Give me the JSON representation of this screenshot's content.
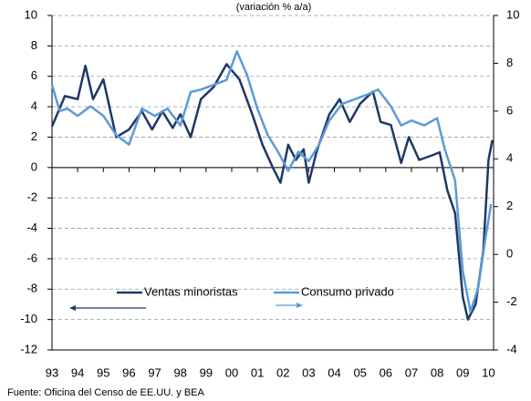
{
  "chart_data": {
    "type": "line",
    "subtitle": "(variación % a/a)",
    "source": "Fuente: Oficina del Censo de EE.UU. y BEA",
    "xlim": [
      1993,
      2010.2
    ],
    "xticks": [
      {
        "value": 1993,
        "label": "93"
      },
      {
        "value": 1994,
        "label": "94"
      },
      {
        "value": 1995,
        "label": "95"
      },
      {
        "value": 1996,
        "label": "96"
      },
      {
        "value": 1997,
        "label": "97"
      },
      {
        "value": 1998,
        "label": "98"
      },
      {
        "value": 1999,
        "label": "99"
      },
      {
        "value": 2000,
        "label": "00"
      },
      {
        "value": 2001,
        "label": "01"
      },
      {
        "value": 2002,
        "label": "02"
      },
      {
        "value": 2003,
        "label": "03"
      },
      {
        "value": 2004,
        "label": "04"
      },
      {
        "value": 2005,
        "label": "05"
      },
      {
        "value": 2006,
        "label": "06"
      },
      {
        "value": 2007,
        "label": "07"
      },
      {
        "value": 2008,
        "label": "08"
      },
      {
        "value": 2009,
        "label": "09"
      },
      {
        "value": 2010,
        "label": "10"
      }
    ],
    "ylim": [
      -12,
      10
    ],
    "yticks": [
      -12,
      -10,
      -8,
      -6,
      -4,
      -2,
      0,
      2,
      4,
      6,
      8,
      10
    ],
    "y2lim": [
      -4,
      10
    ],
    "y2ticks": [
      -4,
      -2,
      0,
      2,
      4,
      6,
      8,
      10
    ],
    "grid": true,
    "series": [
      {
        "name": "Ventas minoristas",
        "color": "#1f3864",
        "axis": "y",
        "x": [
          1993.0,
          1993.5,
          1994.0,
          1994.3,
          1994.6,
          1995.0,
          1995.5,
          1996.0,
          1996.5,
          1996.9,
          1997.3,
          1997.7,
          1998.0,
          1998.4,
          1998.8,
          1999.3,
          1999.8,
          2000.3,
          2000.8,
          2001.2,
          2001.6,
          2001.9,
          2002.2,
          2002.5,
          2002.8,
          2003.0,
          2003.3,
          2003.8,
          2004.2,
          2004.6,
          2005.0,
          2005.5,
          2005.8,
          2006.2,
          2006.6,
          2006.9,
          2007.3,
          2007.8,
          2008.1,
          2008.4,
          2008.7,
          2009.0,
          2009.2,
          2009.5,
          2009.8,
          2010.0,
          2010.15
        ],
        "values": [
          2.7,
          4.7,
          4.5,
          6.7,
          4.5,
          5.8,
          2.0,
          2.5,
          3.7,
          2.5,
          3.7,
          2.6,
          3.5,
          2.0,
          4.5,
          5.3,
          6.8,
          5.8,
          3.5,
          1.5,
          0,
          -1.0,
          1.5,
          0.5,
          1.2,
          -1.0,
          1.0,
          3.5,
          4.5,
          3.0,
          4.2,
          5.0,
          3.0,
          2.8,
          0.3,
          2.0,
          0.5,
          0.8,
          1.0,
          -1.5,
          -3.0,
          -8.5,
          -10.0,
          -9.0,
          -5.5,
          0.5,
          1.8
        ]
      },
      {
        "name": "Consumo privado",
        "color": "#5b9bd5",
        "axis": "y2",
        "x": [
          1993.0,
          1993.3,
          1993.6,
          1994.0,
          1994.5,
          1995.0,
          1995.5,
          1996.0,
          1996.5,
          1997.0,
          1997.5,
          1998.0,
          1998.4,
          1998.8,
          1999.3,
          1999.8,
          2000.2,
          2000.6,
          2001.0,
          2001.4,
          2001.8,
          2002.2,
          2002.6,
          2003.0,
          2003.4,
          2003.8,
          2004.3,
          2004.8,
          2005.3,
          2005.7,
          2006.2,
          2006.6,
          2007.0,
          2007.5,
          2008.0,
          2008.3,
          2008.7,
          2009.0,
          2009.3,
          2009.6,
          2009.9,
          2010.1
        ],
        "values": [
          7.1,
          6.0,
          6.1,
          5.8,
          6.2,
          5.8,
          5.0,
          4.6,
          6.1,
          5.8,
          6.1,
          5.4,
          6.8,
          6.9,
          7.1,
          7.3,
          8.5,
          7.5,
          6.1,
          5.0,
          4.3,
          3.5,
          4.3,
          3.9,
          4.6,
          5.6,
          6.3,
          6.5,
          6.7,
          6.9,
          6.2,
          5.4,
          5.6,
          5.4,
          5.7,
          4.4,
          3.1,
          -0.7,
          -2.4,
          -1.4,
          0.8,
          2.1
        ]
      }
    ]
  }
}
